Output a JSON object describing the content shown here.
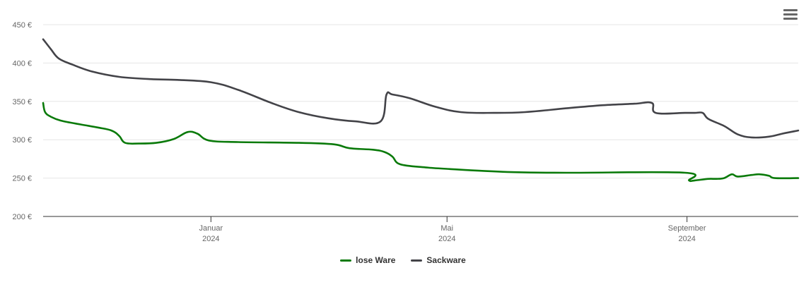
{
  "chart_data": {
    "type": "line",
    "ylim": [
      200,
      450
    ],
    "y_ticks": [
      {
        "value": 200,
        "label": "200 €"
      },
      {
        "value": 250,
        "label": "250 €"
      },
      {
        "value": 300,
        "label": "300 €"
      },
      {
        "value": 350,
        "label": "350 €"
      },
      {
        "value": 400,
        "label": "400 €"
      },
      {
        "value": 450,
        "label": "450 €"
      }
    ],
    "xlim": [
      "2023-10-07",
      "2024-10-28"
    ],
    "x_ticks": [
      {
        "date": "2024-01-01",
        "month": "Januar",
        "year": "2024"
      },
      {
        "date": "2024-05-01",
        "month": "Mai",
        "year": "2024"
      },
      {
        "date": "2024-09-01",
        "month": "September",
        "year": "2024"
      }
    ],
    "grid": true,
    "legend_position": "bottom-center",
    "series": [
      {
        "name": "lose Ware",
        "color": "#0a7a0a",
        "points": [
          [
            "2023-10-07",
            348
          ],
          [
            "2023-10-08",
            336
          ],
          [
            "2023-10-11",
            330
          ],
          [
            "2023-10-16",
            325
          ],
          [
            "2023-10-26",
            320
          ],
          [
            "2023-11-04",
            316
          ],
          [
            "2023-11-11",
            312
          ],
          [
            "2023-11-15",
            305
          ],
          [
            "2023-11-18",
            296
          ],
          [
            "2023-11-25",
            295
          ],
          [
            "2023-12-04",
            296
          ],
          [
            "2023-12-13",
            301
          ],
          [
            "2023-12-20",
            310
          ],
          [
            "2023-12-25",
            308
          ],
          [
            "2023-12-31",
            299
          ],
          [
            "2024-01-15",
            297
          ],
          [
            "2024-02-15",
            296
          ],
          [
            "2024-03-04",
            294
          ],
          [
            "2024-03-12",
            289
          ],
          [
            "2024-03-24",
            287
          ],
          [
            "2024-03-30",
            284
          ],
          [
            "2024-04-03",
            278
          ],
          [
            "2024-04-07",
            268
          ],
          [
            "2024-04-20",
            264
          ],
          [
            "2024-05-01",
            262
          ],
          [
            "2024-06-01",
            258
          ],
          [
            "2024-07-01",
            257
          ],
          [
            "2024-08-31",
            257
          ],
          [
            "2024-09-02",
            247
          ],
          [
            "2024-09-05",
            247
          ],
          [
            "2024-09-12",
            249
          ],
          [
            "2024-09-16",
            249
          ],
          [
            "2024-09-20",
            250
          ],
          [
            "2024-09-24",
            255
          ],
          [
            "2024-09-27",
            252
          ],
          [
            "2024-10-04",
            254
          ],
          [
            "2024-10-08",
            255
          ],
          [
            "2024-10-13",
            253
          ],
          [
            "2024-10-16",
            250
          ],
          [
            "2024-10-28",
            250
          ]
        ]
      },
      {
        "name": "Sackware",
        "color": "#434348",
        "points": [
          [
            "2023-10-07",
            431
          ],
          [
            "2023-10-11",
            418
          ],
          [
            "2023-10-15",
            406
          ],
          [
            "2023-10-22",
            398
          ],
          [
            "2023-11-01",
            389
          ],
          [
            "2023-11-15",
            382
          ],
          [
            "2023-12-01",
            379
          ],
          [
            "2023-12-15",
            378
          ],
          [
            "2024-01-01",
            375
          ],
          [
            "2024-01-15",
            365
          ],
          [
            "2024-02-01",
            348
          ],
          [
            "2024-02-15",
            336
          ],
          [
            "2024-03-01",
            328
          ],
          [
            "2024-03-15",
            324
          ],
          [
            "2024-03-28",
            324
          ],
          [
            "2024-03-31",
            359
          ],
          [
            "2024-04-03",
            359
          ],
          [
            "2024-04-12",
            354
          ],
          [
            "2024-04-25",
            343
          ],
          [
            "2024-05-08",
            336
          ],
          [
            "2024-05-25",
            335
          ],
          [
            "2024-06-10",
            336
          ],
          [
            "2024-07-01",
            341
          ],
          [
            "2024-07-20",
            345
          ],
          [
            "2024-08-05",
            347
          ],
          [
            "2024-08-14",
            348
          ],
          [
            "2024-08-16",
            335
          ],
          [
            "2024-08-31",
            335
          ],
          [
            "2024-09-05",
            335
          ],
          [
            "2024-09-09",
            335
          ],
          [
            "2024-09-12",
            327
          ],
          [
            "2024-09-20",
            318
          ],
          [
            "2024-09-27",
            307
          ],
          [
            "2024-10-04",
            303
          ],
          [
            "2024-10-13",
            304
          ],
          [
            "2024-10-20",
            308
          ],
          [
            "2024-10-28",
            312
          ]
        ]
      }
    ]
  },
  "menu": {
    "icon": "hamburger-menu-icon"
  }
}
